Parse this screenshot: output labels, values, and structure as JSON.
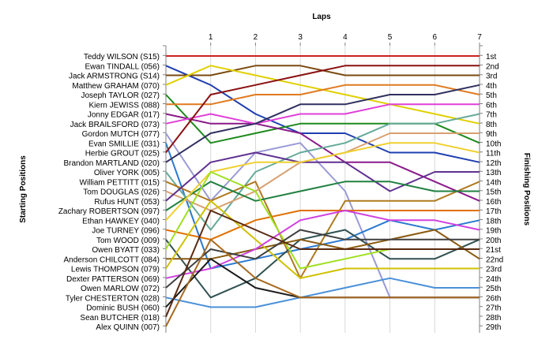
{
  "chart_data": {
    "type": "line",
    "title": "Laps",
    "ylabel_left": "Starting Positions",
    "ylabel_right": "Finishing Positions",
    "x": [
      1,
      2,
      3,
      4,
      5,
      6,
      7
    ],
    "x_tick_labels": [
      "1",
      "2",
      "3",
      "4",
      "5",
      "6",
      "7"
    ],
    "xlim": [
      0,
      7
    ],
    "ylim": [
      1,
      29
    ],
    "starting_labels": [
      "Teddy WILSON (S15)",
      "Ewan TINDALL (056)",
      "Jack ARMSTRONG (S14)",
      "Matthew GRAHAM (070)",
      "Joseph TAYLOR (027)",
      "Kiern JEWISS (088)",
      "Jonny EDGAR (017)",
      "Jack BRAILSFORD (073)",
      "Gordon MUTCH (077)",
      "Evan SMILLIE (031)",
      "Herbie GROUT (025)",
      "Brandon MARTLAND (020)",
      "Oliver YORK (005)",
      "William PETTITT (015)",
      "Tom DOUGLAS (026)",
      "Rufus HUNT (053)",
      "Zachary ROBERTSON (097)",
      "Ethan HAWKEY (040)",
      "Joe TURNEY (096)",
      "Tom WOOD (009)",
      "Owen BYATT (033)",
      "Anderson CHILCOTT (084)",
      "Lewis THOMPSON (079)",
      "Dexter PATTERSON (069)",
      "Owen MARLOW (072)",
      "Tyler CHESTERTON (028)",
      "Dominic BUSH (060)",
      "Sean BUTCHER (018)",
      "Alex QUINN (007)"
    ],
    "finishing_labels": [
      "1st",
      "2nd",
      "3rd",
      "4th",
      "5th",
      "6th",
      "7th",
      "8th",
      "9th",
      "10th",
      "11th",
      "12th",
      "13th",
      "14th",
      "15th",
      "16th",
      "17th",
      "18th",
      "19th",
      "20th",
      "21st",
      "22nd",
      "23rd",
      "24th",
      "25th",
      "26th",
      "27th",
      "28th",
      "29th"
    ],
    "series": [
      {
        "start": 1,
        "color": "#cc2222",
        "positions": [
          1,
          1,
          1,
          1,
          1,
          1,
          1
        ]
      },
      {
        "start": 2,
        "color": "#1f3fb0",
        "positions": [
          4,
          7,
          9,
          9,
          11,
          11,
          12
        ]
      },
      {
        "start": 3,
        "color": "#7a4a10",
        "positions": [
          3,
          2,
          2,
          3,
          3,
          3,
          3
        ]
      },
      {
        "start": 4,
        "color": "#e0d000",
        "positions": [
          2,
          3,
          4,
          5,
          6,
          7,
          8
        ]
      },
      {
        "start": 5,
        "color": "#1e8a1e",
        "positions": [
          10,
          9,
          8,
          8,
          8,
          8,
          10
        ]
      },
      {
        "start": 6,
        "color": "#e07a1f",
        "positions": [
          6,
          5,
          5,
          4,
          4,
          4,
          5
        ]
      },
      {
        "start": 7,
        "color": "#8a1a8a",
        "positions": [
          8,
          8,
          9,
          12,
          12,
          14,
          16
        ]
      },
      {
        "start": 8,
        "color": "#e040d8",
        "positions": [
          7,
          8,
          7,
          7,
          6,
          6,
          6
        ]
      },
      {
        "start": 9,
        "color": "#9a9ad8",
        "positions": [
          16,
          11,
          10,
          15,
          26,
          26,
          26
        ]
      },
      {
        "start": 10,
        "color": "#2a7ad0",
        "positions": [
          23,
          22,
          21,
          20,
          18,
          19,
          18
        ]
      },
      {
        "start": 11,
        "color": "#8a1010",
        "positions": [
          5,
          4,
          3,
          2,
          2,
          2,
          2
        ]
      },
      {
        "start": 12,
        "color": "#303060",
        "positions": [
          9,
          8,
          6,
          6,
          5,
          5,
          4
        ]
      },
      {
        "start": 13,
        "color": "#66aa99",
        "positions": [
          19,
          13,
          11,
          10,
          8,
          8,
          7
        ]
      },
      {
        "start": 14,
        "color": "#b07a20",
        "positions": [
          16,
          14,
          24,
          16,
          16,
          16,
          14
        ]
      },
      {
        "start": 15,
        "color": "#d8a070",
        "positions": [
          17,
          15,
          12,
          11,
          9,
          9,
          9
        ]
      },
      {
        "start": 16,
        "color": "#603090",
        "positions": [
          12,
          11,
          12,
          12,
          15,
          13,
          13
        ]
      },
      {
        "start": 17,
        "color": "#208040",
        "positions": [
          14,
          16,
          15,
          14,
          14,
          15,
          15
        ]
      },
      {
        "start": 18,
        "color": "#f0d030",
        "positions": [
          13,
          12,
          12,
          11,
          10,
          10,
          11
        ]
      },
      {
        "start": 19,
        "color": "#e07000",
        "positions": [
          20,
          18,
          17,
          17,
          17,
          17,
          17
        ]
      },
      {
        "start": 20,
        "color": "#305050",
        "positions": [
          26,
          24,
          20,
          19,
          22,
          22,
          20
        ]
      },
      {
        "start": 21,
        "color": "#a0e020",
        "positions": [
          13,
          15,
          23,
          22,
          21,
          21,
          21
        ]
      },
      {
        "start": 22,
        "color": "#8a5a10",
        "positions": [
          22,
          21,
          20,
          21,
          20,
          19,
          22
        ]
      },
      {
        "start": 23,
        "color": "#d0c000",
        "positions": [
          16,
          20,
          24,
          23,
          23,
          23,
          23
        ]
      },
      {
        "start": 24,
        "color": "#d040e0",
        "positions": [
          23,
          21,
          18,
          17,
          18,
          18,
          19
        ]
      },
      {
        "start": 25,
        "color": "#404040",
        "positions": [
          21,
          22,
          19,
          20,
          20,
          20,
          20
        ]
      },
      {
        "start": 26,
        "color": "#4a90d8",
        "positions": [
          27,
          27,
          26,
          25,
          24,
          25,
          25
        ]
      },
      {
        "start": 27,
        "color": "#1a1a1a",
        "positions": [
          22,
          25,
          26,
          26,
          26,
          26,
          26
        ]
      },
      {
        "start": 28,
        "color": "#5a2a10",
        "positions": [
          17,
          19,
          21,
          21,
          21,
          21,
          21
        ]
      },
      {
        "start": 29,
        "color": "#a86a20",
        "positions": [
          20,
          24,
          26,
          26,
          26,
          26,
          26
        ]
      }
    ],
    "grid": true,
    "legend": "none"
  }
}
